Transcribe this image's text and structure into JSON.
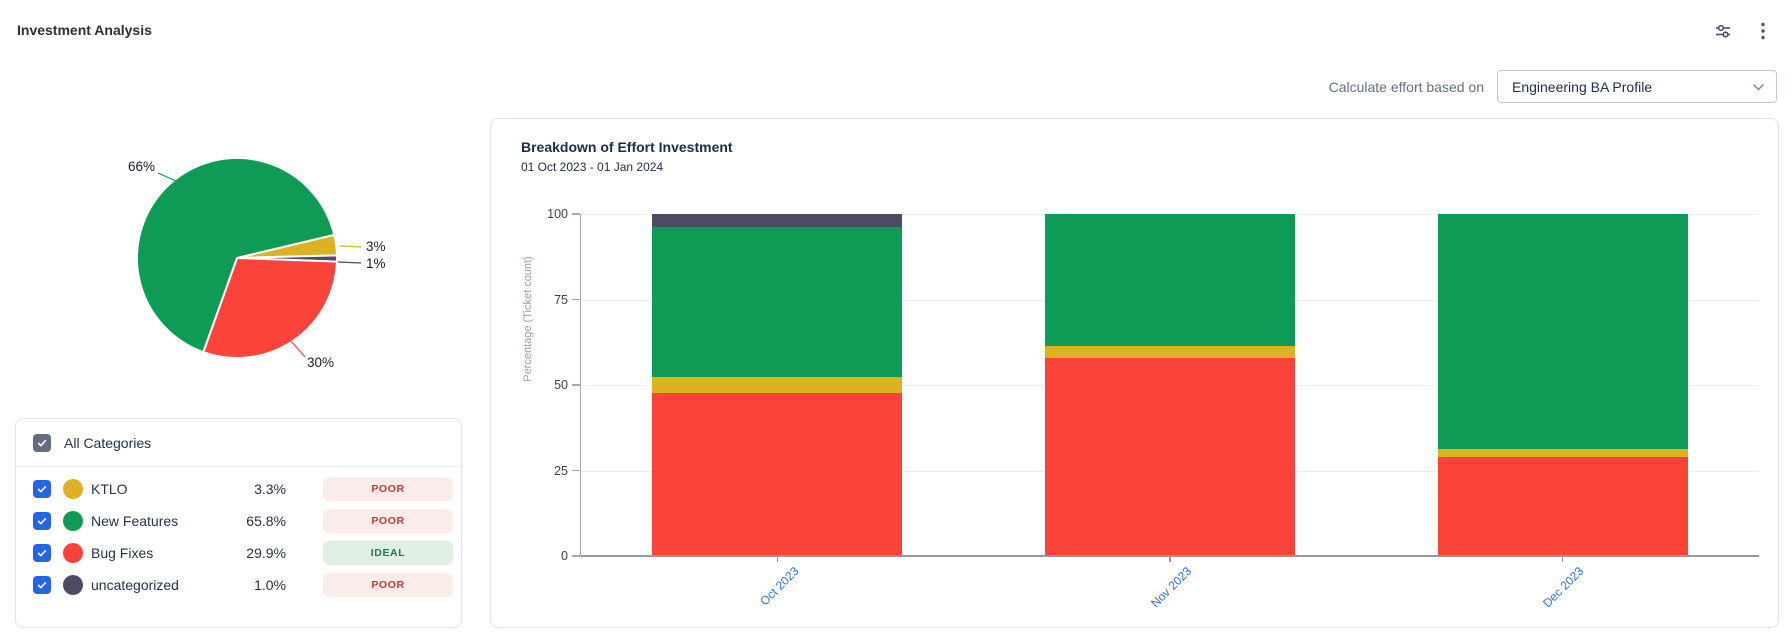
{
  "header": {
    "title": "Investment Analysis"
  },
  "controls": {
    "label": "Calculate effort based on",
    "profile_value": "Engineering BA Profile"
  },
  "categories_panel": {
    "all_label": "All Categories",
    "rows": [
      {
        "name": "KTLO",
        "percent": "3.3%",
        "status": "POOR",
        "status_type": "poor",
        "color": "#DCB223",
        "checked": true
      },
      {
        "name": "New Features",
        "percent": "65.8%",
        "status": "POOR",
        "status_type": "poor",
        "color": "#0D9B56",
        "checked": true
      },
      {
        "name": "Bug Fixes",
        "percent": "29.9%",
        "status": "IDEAL",
        "status_type": "ideal",
        "color": "#FA4339",
        "checked": true
      },
      {
        "name": "uncategorized",
        "percent": "1.0%",
        "status": "POOR",
        "status_type": "poor",
        "color": "#4C4B63",
        "checked": true
      }
    ],
    "status_colors": {
      "poor": {
        "bg": "#FBECEA",
        "text": "#C9372C"
      },
      "ideal": {
        "bg": "#DFF0E2",
        "text": "#1E7D46"
      }
    }
  },
  "chart_data": [
    {
      "type": "pie",
      "slices": [
        {
          "label": "KTLO",
          "value": 3.3,
          "display": "3%",
          "color": "#DCB223"
        },
        {
          "label": "uncategorized",
          "value": 1.0,
          "display": "1%",
          "color": "#4C4B63"
        },
        {
          "label": "Bug Fixes",
          "value": 29.9,
          "display": "30%",
          "color": "#FA4339"
        },
        {
          "label": "New Features",
          "value": 65.8,
          "display": "66%",
          "color": "#0D9B56"
        }
      ]
    },
    {
      "type": "bar",
      "stacked": true,
      "title": "Breakdown of Effort Investment",
      "subtitle": "01 Oct 2023 - 01 Jan 2024",
      "ylabel": "Percentage (Ticket count)",
      "ylim": [
        0,
        100
      ],
      "yticks": [
        0,
        25,
        50,
        75,
        100
      ],
      "grid": true,
      "legend": "none",
      "categories": [
        "Oct 2023",
        "Nov 2023",
        "Dec 2023"
      ],
      "series": [
        {
          "name": "Bug Fixes",
          "color": "#FA4339",
          "values": [
            47.8,
            58.0,
            29.0
          ]
        },
        {
          "name": "KTLO",
          "color": "#DCB223",
          "values": [
            4.6,
            3.5,
            2.4
          ]
        },
        {
          "name": "New Features",
          "color": "#0D9B56",
          "values": [
            43.9,
            38.5,
            68.6
          ]
        },
        {
          "name": "uncategorized",
          "color": "#4C4B63",
          "values": [
            3.7,
            0.0,
            0.0
          ]
        }
      ],
      "xlabel_color": "#2B6FE4"
    }
  ]
}
